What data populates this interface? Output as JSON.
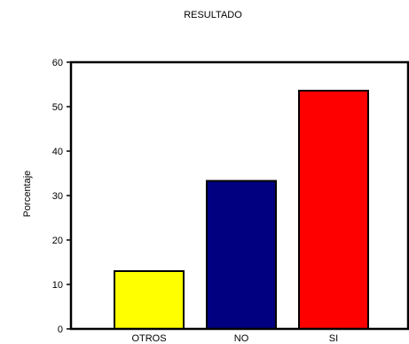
{
  "chart_data": {
    "type": "bar",
    "title": "RESULTADO",
    "xlabel": "",
    "ylabel": "Porcentaje",
    "categories": [
      "OTROS",
      "NO",
      "SI"
    ],
    "values": [
      13.0,
      33.3,
      53.6
    ],
    "colors": [
      "#ffff00",
      "#000080",
      "#ff0000"
    ],
    "ylim": [
      0,
      60
    ],
    "yticks": [
      0,
      10,
      20,
      30,
      40,
      50,
      60
    ],
    "grid": false,
    "legend": "none"
  }
}
